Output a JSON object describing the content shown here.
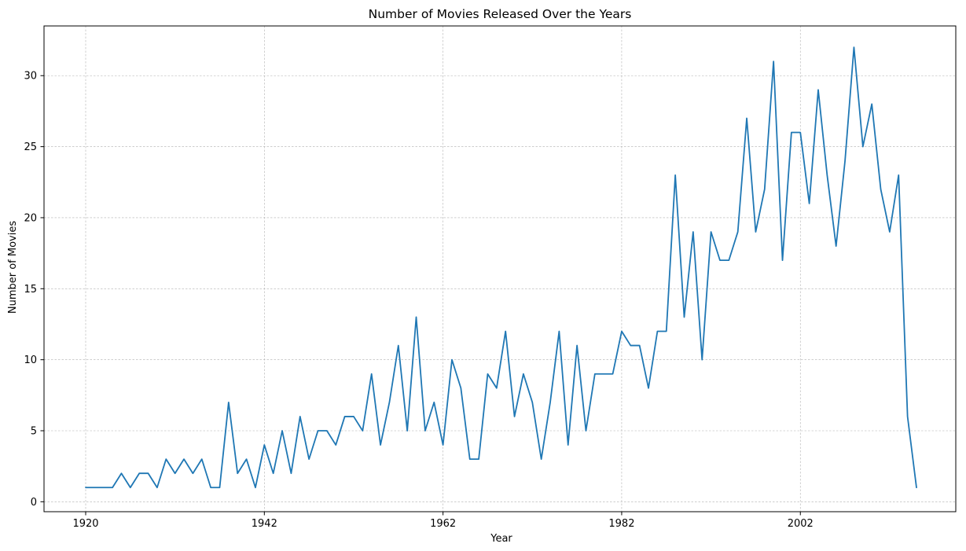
{
  "chart_data": {
    "type": "line",
    "title": "Number of Movies Released Over the Years",
    "xlabel": "Year",
    "ylabel": "Number of Movies",
    "x_tick_labels": [
      "1920",
      "1942",
      "1962",
      "1982",
      "2002",
      ""
    ],
    "y_ticks": [
      0,
      5,
      10,
      15,
      20,
      25,
      30
    ],
    "ylim": [
      -0.7,
      33.5
    ],
    "grid": true,
    "line_color": "#1f77b4",
    "series": [
      {
        "values": [
          1,
          1,
          1,
          1,
          2,
          1,
          2,
          2,
          1,
          3,
          2,
          3,
          2,
          3,
          1,
          1,
          7,
          2,
          3,
          1,
          4,
          2,
          5,
          2,
          6,
          3,
          5,
          5,
          4,
          6,
          6,
          5,
          9,
          4,
          7,
          11,
          5,
          13,
          5,
          7,
          4,
          10,
          8,
          3,
          3,
          9,
          8,
          12,
          6,
          9,
          7,
          3,
          7,
          12,
          4,
          11,
          5,
          9,
          9,
          9,
          12,
          11,
          11,
          8,
          12,
          12,
          23,
          13,
          19,
          10,
          19,
          17,
          17,
          19,
          27,
          19,
          22,
          31,
          17,
          26,
          26,
          21,
          29,
          23,
          18,
          24,
          32,
          25,
          28,
          22,
          19,
          23,
          6,
          1
        ]
      }
    ]
  }
}
